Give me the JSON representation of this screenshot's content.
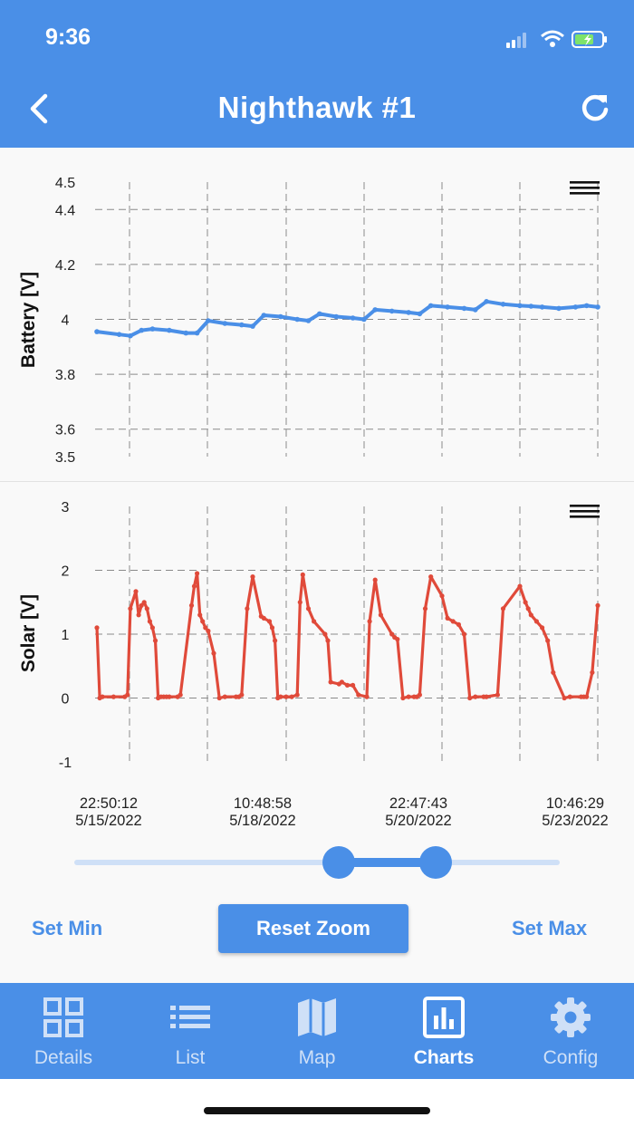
{
  "status_bar": {
    "time": "9:36"
  },
  "nav": {
    "title": "Nighthawk #1",
    "back_icon": "chevron-left-icon",
    "refresh_icon": "refresh-icon"
  },
  "colors": {
    "accent": "#4a8fe7",
    "battery_series": "#4a8fe7",
    "solar_series": "#e04a3a"
  },
  "chart_data": [
    {
      "type": "line",
      "title": "",
      "xlabel": "",
      "ylabel": "Battery [V]",
      "ylim": [
        3.5,
        4.5
      ],
      "yticks": [
        "4.5",
        "4.4",
        "4.2",
        "4",
        "3.8",
        "3.6",
        "3.5"
      ],
      "xlim": [
        0,
        9
      ],
      "x_tick_labels": [
        {
          "time": "22:50:12",
          "date": "5/15/2022"
        },
        {
          "time": "10:48:58",
          "date": "5/18/2022"
        },
        {
          "time": "22:47:43",
          "date": "5/20/2022"
        },
        {
          "time": "10:46:29",
          "date": "5/23/2022"
        }
      ],
      "series": [
        {
          "name": "Battery",
          "x": [
            0,
            0.4,
            0.6,
            0.8,
            1.0,
            1.3,
            1.6,
            1.8,
            2.0,
            2.3,
            2.6,
            2.8,
            3.0,
            3.3,
            3.6,
            3.8,
            4.0,
            4.3,
            4.6,
            4.8,
            5.0,
            5.3,
            5.6,
            5.8,
            6.0,
            6.3,
            6.6,
            6.8,
            7.0,
            7.3,
            7.6,
            7.8,
            8.0,
            8.3,
            8.6,
            8.8,
            9.0
          ],
          "values": [
            3.955,
            3.945,
            3.94,
            3.96,
            3.965,
            3.96,
            3.95,
            3.95,
            3.995,
            3.985,
            3.98,
            3.975,
            4.015,
            4.01,
            4.0,
            3.995,
            4.02,
            4.01,
            4.005,
            4.0,
            4.035,
            4.03,
            4.025,
            4.02,
            4.05,
            4.045,
            4.04,
            4.035,
            4.065,
            4.055,
            4.05,
            4.048,
            4.045,
            4.04,
            4.045,
            4.05,
            4.045
          ]
        }
      ]
    },
    {
      "type": "line",
      "title": "",
      "xlabel": "",
      "ylabel": "Solar [V]",
      "ylim": [
        -1,
        3
      ],
      "yticks": [
        "3",
        "2",
        "1",
        "0",
        "-1"
      ],
      "xlim": [
        0,
        9
      ],
      "series": [
        {
          "name": "Solar",
          "x": [
            0.0,
            0.05,
            0.1,
            0.3,
            0.5,
            0.55,
            0.6,
            0.7,
            0.75,
            0.8,
            0.85,
            0.9,
            0.95,
            1.0,
            1.05,
            1.1,
            1.15,
            1.2,
            1.25,
            1.3,
            1.45,
            1.5,
            1.7,
            1.75,
            1.8,
            1.85,
            1.9,
            1.95,
            2.0,
            2.1,
            2.2,
            2.3,
            2.5,
            2.55,
            2.6,
            2.7,
            2.8,
            2.95,
            3.0,
            3.1,
            3.15,
            3.2,
            3.25,
            3.3,
            3.4,
            3.5,
            3.6,
            3.65,
            3.7,
            3.8,
            3.9,
            4.1,
            4.15,
            4.2,
            4.35,
            4.4,
            4.5,
            4.6,
            4.7,
            4.85,
            4.9,
            5.0,
            5.1,
            5.3,
            5.35,
            5.4,
            5.5,
            5.6,
            5.7,
            5.75,
            5.8,
            5.9,
            6.0,
            6.2,
            6.3,
            6.4,
            6.5,
            6.6,
            6.7,
            6.8,
            6.95,
            7.0,
            7.2,
            7.3,
            7.6,
            7.7,
            7.75,
            7.8,
            7.9,
            8.0,
            8.1,
            8.2,
            8.4,
            8.5,
            8.7,
            8.75,
            8.8,
            8.9,
            9.0
          ],
          "values": [
            1.1,
            0.0,
            0.02,
            0.02,
            0.02,
            0.05,
            1.4,
            1.67,
            1.3,
            1.45,
            1.5,
            1.4,
            1.2,
            1.1,
            0.9,
            0.0,
            0.02,
            0.02,
            0.02,
            0.02,
            0.02,
            0.05,
            1.45,
            1.75,
            1.95,
            1.3,
            1.2,
            1.1,
            1.05,
            0.7,
            0.0,
            0.02,
            0.02,
            0.02,
            0.05,
            1.4,
            1.9,
            1.28,
            1.25,
            1.2,
            1.1,
            0.9,
            0.0,
            0.02,
            0.02,
            0.02,
            0.05,
            1.5,
            1.93,
            1.4,
            1.2,
            1.0,
            0.9,
            0.25,
            0.22,
            0.25,
            0.2,
            0.2,
            0.05,
            0.02,
            1.2,
            1.85,
            1.3,
            1.0,
            0.95,
            0.92,
            0.0,
            0.02,
            0.02,
            0.02,
            0.05,
            1.4,
            1.9,
            1.6,
            1.25,
            1.2,
            1.15,
            1.0,
            0.0,
            0.02,
            0.02,
            0.02,
            0.05,
            1.4,
            1.75,
            1.5,
            1.4,
            1.3,
            1.2,
            1.1,
            0.9,
            0.4,
            0.0,
            0.02,
            0.02,
            0.02,
            0.02,
            0.4,
            1.45
          ]
        }
      ]
    }
  ],
  "x_axis": {
    "labels": [
      {
        "time": "22:50:12",
        "date": "5/15/2022"
      },
      {
        "time": "10:48:58",
        "date": "5/18/2022"
      },
      {
        "time": "22:47:43",
        "date": "5/20/2022"
      },
      {
        "time": "10:46:29",
        "date": "5/23/2022"
      }
    ]
  },
  "range_slider": {
    "start_fraction": 0.544,
    "end_fraction": 0.744
  },
  "actions": {
    "set_min": "Set Min",
    "reset_zoom": "Reset Zoom",
    "set_max": "Set Max"
  },
  "tabs": [
    {
      "label": "Details",
      "icon": "grid-icon",
      "active": false
    },
    {
      "label": "List",
      "icon": "list-icon",
      "active": false
    },
    {
      "label": "Map",
      "icon": "map-icon",
      "active": false
    },
    {
      "label": "Charts",
      "icon": "bar-chart-icon",
      "active": true
    },
    {
      "label": "Config",
      "icon": "gear-icon",
      "active": false
    }
  ]
}
